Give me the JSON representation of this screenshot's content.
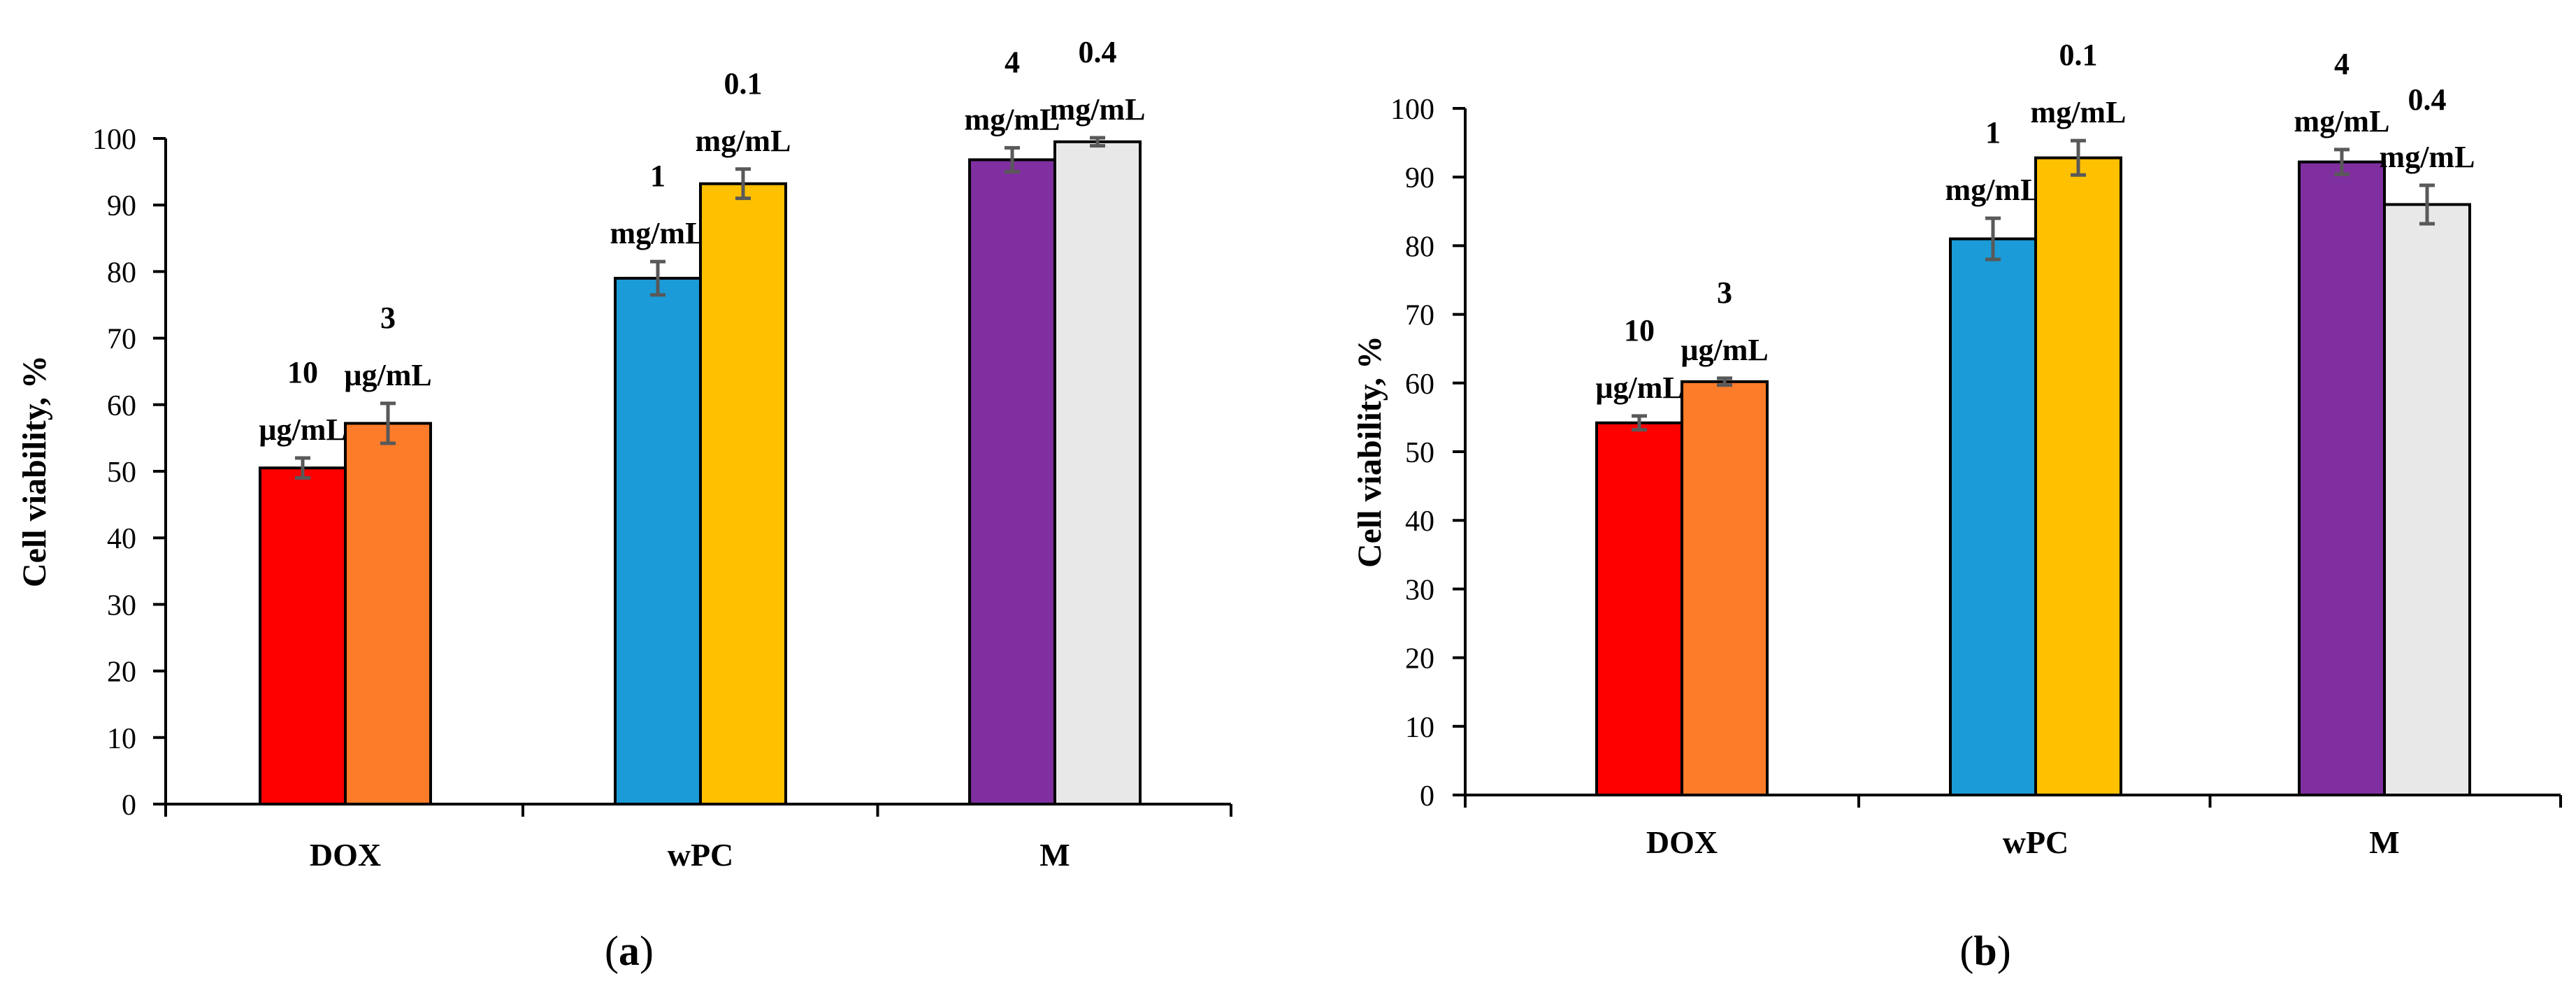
{
  "colors": {
    "bar_colors": [
      "#ff0000",
      "#fd7c2a",
      "#1b9bd7",
      "#ffc000",
      "#7f2f9f",
      "#e8e8e8"
    ],
    "error_bar": "#595959",
    "axis": "#000000"
  },
  "chart_data": [
    {
      "type": "bar",
      "panel_label": "(a)",
      "ylabel": "Cell viability, %",
      "xlabel": "",
      "ylim": [
        0,
        100
      ],
      "y_ticks": [
        0,
        10,
        20,
        30,
        40,
        50,
        60,
        70,
        80,
        90,
        100
      ],
      "grid": false,
      "categories": [
        "DOX",
        "wPC",
        "M"
      ],
      "bars": [
        {
          "category": "DOX",
          "value": 50.5,
          "error": 1.5,
          "label_lines": [
            "10",
            "µg/mL"
          ],
          "color_index": 0
        },
        {
          "category": "DOX",
          "value": 57.2,
          "error": 3.0,
          "label_lines": [
            "3",
            "µg/mL"
          ],
          "color_index": 1
        },
        {
          "category": "wPC",
          "value": 79.0,
          "error": 2.5,
          "label_lines": [
            "1",
            "mg/mL"
          ],
          "color_index": 2
        },
        {
          "category": "wPC",
          "value": 93.2,
          "error": 2.2,
          "label_lines": [
            "0.1",
            "mg/mL"
          ],
          "color_index": 3
        },
        {
          "category": "M",
          "value": 96.8,
          "error": 1.8,
          "label_lines": [
            "4",
            "mg/mL"
          ],
          "color_index": 4
        },
        {
          "category": "M",
          "value": 99.5,
          "error": 0.6,
          "label_lines": [
            "0.4",
            "mg/mL"
          ],
          "color_index": 5
        }
      ]
    },
    {
      "type": "bar",
      "panel_label": "(b)",
      "ylabel": "Cell viability, %",
      "xlabel": "",
      "ylim": [
        0,
        100
      ],
      "y_ticks": [
        0,
        10,
        20,
        30,
        40,
        50,
        60,
        70,
        80,
        90,
        100
      ],
      "grid": false,
      "categories": [
        "DOX",
        "wPC",
        "M"
      ],
      "bars": [
        {
          "category": "DOX",
          "value": 54.2,
          "error": 1.0,
          "label_lines": [
            "10",
            "µg/mL"
          ],
          "color_index": 0
        },
        {
          "category": "DOX",
          "value": 60.2,
          "error": 0.5,
          "label_lines": [
            "3",
            "µg/mL"
          ],
          "color_index": 1
        },
        {
          "category": "wPC",
          "value": 81.0,
          "error": 3.0,
          "label_lines": [
            "1",
            "mg/mL"
          ],
          "color_index": 2
        },
        {
          "category": "wPC",
          "value": 92.8,
          "error": 2.5,
          "label_lines": [
            "0.1",
            "mg/mL"
          ],
          "color_index": 3
        },
        {
          "category": "M",
          "value": 92.2,
          "error": 1.8,
          "label_lines": [
            "4",
            "mg/mL"
          ],
          "color_index": 4
        },
        {
          "category": "M",
          "value": 86.0,
          "error": 2.8,
          "label_lines": [
            "0.4",
            "mg/mL"
          ],
          "color_index": 5
        }
      ]
    }
  ]
}
